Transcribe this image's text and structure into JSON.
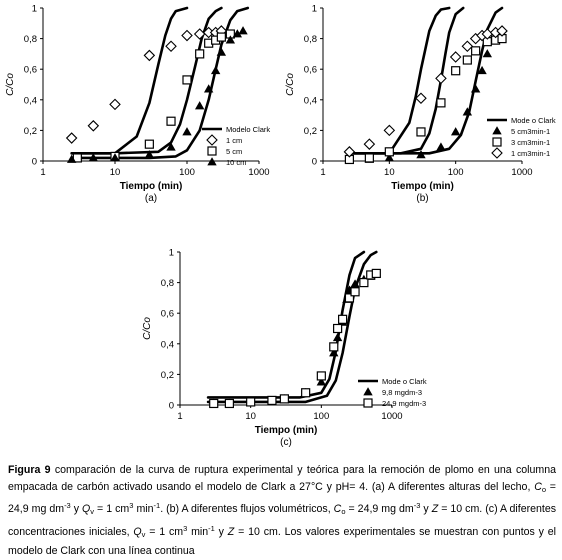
{
  "chart_data": [
    {
      "type": "scatter",
      "panel": "(a)",
      "xlabel": "Tiempo (min)",
      "ylabel": "C/Co",
      "x_scale": "log",
      "xlim": [
        1,
        1000
      ],
      "ylim": [
        0,
        1
      ],
      "x_ticks": [
        "1",
        "10",
        "100",
        "1000"
      ],
      "y_ticks": [
        "0",
        "0,2",
        "0,4",
        "0,6",
        "0,8",
        "1"
      ],
      "legend_position": "right",
      "series": [
        {
          "name": "1 cm",
          "marker": "diamond",
          "x": [
            2.5,
            5,
            10,
            30,
            60,
            100,
            150,
            200,
            250,
            300
          ],
          "y": [
            0.15,
            0.23,
            0.37,
            0.69,
            0.75,
            0.82,
            0.83,
            0.84,
            0.84,
            0.85
          ]
        },
        {
          "name": "5 cm",
          "marker": "square",
          "x": [
            3,
            10,
            30,
            60,
            100,
            150,
            200,
            250,
            300,
            400
          ],
          "y": [
            0.02,
            0.03,
            0.11,
            0.26,
            0.53,
            0.7,
            0.77,
            0.79,
            0.81,
            0.83
          ]
        },
        {
          "name": "10 cm",
          "marker": "triangle",
          "x": [
            2.5,
            5,
            10,
            30,
            60,
            100,
            150,
            200,
            250,
            300,
            400,
            500,
            600
          ],
          "y": [
            0.01,
            0.02,
            0.02,
            0.04,
            0.09,
            0.19,
            0.36,
            0.47,
            0.59,
            0.71,
            0.79,
            0.83,
            0.85
          ]
        }
      ],
      "model_curves": [
        {
          "name": "Modelo Clark",
          "x": [
            2.5,
            10,
            20,
            30,
            40,
            50,
            60,
            70,
            100
          ],
          "y": [
            0.05,
            0.05,
            0.16,
            0.38,
            0.63,
            0.82,
            0.93,
            0.98,
            1.0
          ]
        },
        {
          "name": "Modelo Clark",
          "x": [
            2.5,
            10,
            40,
            60,
            80,
            100,
            130,
            160,
            200,
            250,
            300
          ],
          "y": [
            0.05,
            0.05,
            0.06,
            0.12,
            0.24,
            0.4,
            0.62,
            0.8,
            0.93,
            0.98,
            1.0
          ]
        },
        {
          "name": "Modelo Clark",
          "x": [
            2.5,
            30,
            70,
            100,
            150,
            200,
            250,
            300,
            400,
            500,
            700
          ],
          "y": [
            0.02,
            0.02,
            0.03,
            0.07,
            0.2,
            0.4,
            0.6,
            0.76,
            0.92,
            0.98,
            1.0
          ]
        }
      ]
    },
    {
      "type": "scatter",
      "panel": "(b)",
      "xlabel": "Tiempo (min)",
      "ylabel": "C/Co",
      "x_scale": "log",
      "xlim": [
        1,
        1000
      ],
      "ylim": [
        0,
        1
      ],
      "x_ticks": [
        "1",
        "10",
        "100",
        "1000"
      ],
      "y_ticks": [
        "0",
        "0,2",
        "0,4",
        "0,6",
        "0,8",
        "1"
      ],
      "legend_position": "right",
      "series": [
        {
          "name": "1 cm3min-1",
          "marker": "triangle",
          "x": [
            5,
            10,
            30,
            60,
            100,
            150,
            200,
            250,
            300,
            350,
            400
          ],
          "y": [
            0.01,
            0.02,
            0.04,
            0.09,
            0.19,
            0.32,
            0.47,
            0.59,
            0.7,
            0.79,
            0.82
          ]
        },
        {
          "name": "3 cm3min-1",
          "marker": "square",
          "x": [
            2.5,
            5,
            10,
            30,
            60,
            100,
            150,
            200,
            300,
            400,
            500
          ],
          "y": [
            0.01,
            0.02,
            0.06,
            0.19,
            0.38,
            0.59,
            0.66,
            0.72,
            0.78,
            0.79,
            0.8
          ]
        },
        {
          "name": "5 cm3min-1",
          "marker": "diamond",
          "x": [
            2.5,
            5,
            10,
            30,
            60,
            100,
            150,
            200,
            250,
            300,
            400,
            500
          ],
          "y": [
            0.06,
            0.11,
            0.2,
            0.41,
            0.54,
            0.68,
            0.75,
            0.8,
            0.82,
            0.83,
            0.84,
            0.85
          ]
        }
      ],
      "model_curves": [
        {
          "name": "Modelo Clark",
          "x": [
            2.5,
            10,
            20,
            25,
            30,
            40,
            50,
            60,
            80
          ],
          "y": [
            0.05,
            0.05,
            0.25,
            0.42,
            0.6,
            0.85,
            0.95,
            0.99,
            1.0
          ]
        },
        {
          "name": "Modelo Clark",
          "x": [
            2.5,
            15,
            30,
            40,
            50,
            60,
            70,
            80,
            100,
            130
          ],
          "y": [
            0.05,
            0.05,
            0.08,
            0.18,
            0.34,
            0.53,
            0.7,
            0.84,
            0.96,
            1.0
          ]
        },
        {
          "name": "Modelo Clark",
          "x": [
            2.5,
            40,
            80,
            120,
            160,
            200,
            250,
            300,
            400,
            500
          ],
          "y": [
            0.05,
            0.05,
            0.08,
            0.17,
            0.32,
            0.52,
            0.72,
            0.86,
            0.97,
            1.0
          ]
        }
      ]
    },
    {
      "type": "scatter",
      "panel": "(c)",
      "xlabel": "Tiempo (min)",
      "ylabel": "C/Co",
      "x_scale": "log",
      "xlim": [
        1,
        1000
      ],
      "ylim": [
        0,
        1
      ],
      "x_ticks": [
        "1",
        "10",
        "100",
        "1000"
      ],
      "y_ticks": [
        "0",
        "0,2",
        "0,4",
        "0,6",
        "0,8",
        "1"
      ],
      "legend_position": "bottom-right",
      "series": [
        {
          "name": "9,8 mgdm-3",
          "marker": "triangle",
          "x": [
            3,
            5,
            10,
            30,
            60,
            100,
            150,
            170,
            200,
            230,
            250,
            300,
            400,
            500
          ],
          "y": [
            0.01,
            0.01,
            0.02,
            0.04,
            0.08,
            0.15,
            0.34,
            0.44,
            0.54,
            0.69,
            0.75,
            0.79,
            0.82,
            0.84
          ]
        },
        {
          "name": "24,9 mgdm-3",
          "marker": "square",
          "x": [
            3,
            5,
            10,
            20,
            30,
            60,
            100,
            150,
            170,
            200,
            250,
            300,
            400,
            500,
            600
          ],
          "y": [
            0.01,
            0.01,
            0.02,
            0.03,
            0.04,
            0.08,
            0.19,
            0.38,
            0.5,
            0.56,
            0.7,
            0.74,
            0.8,
            0.85,
            0.86
          ]
        }
      ],
      "model_curves": [
        {
          "name": "Modelo Clark",
          "x": [
            2.5,
            50,
            100,
            130,
            160,
            200,
            250,
            300,
            400
          ],
          "y": [
            0.05,
            0.05,
            0.08,
            0.17,
            0.35,
            0.62,
            0.85,
            0.96,
            1.0
          ]
        },
        {
          "name": "Modelo Clark",
          "x": [
            2.5,
            60,
            120,
            160,
            200,
            250,
            300,
            400,
            500,
            600
          ],
          "y": [
            0.02,
            0.02,
            0.06,
            0.16,
            0.34,
            0.58,
            0.76,
            0.92,
            0.98,
            1.0
          ]
        }
      ]
    }
  ],
  "legends": {
    "a": {
      "model": "Modelo Clark",
      "s1": "1 cm",
      "s2": "5 cm",
      "s3": "10 cm"
    },
    "b": {
      "model": "Mode o Clark",
      "s1": "1 cm3min-1",
      "s2": "3 cm3min-1",
      "s3": "5 cm3min-1"
    },
    "c": {
      "model": "Mode o Clark",
      "s1": "9,8 mgdm-3",
      "s2": "24,9 mgdm-3"
    }
  },
  "caption": {
    "figure_label": "Figura 9",
    "text_1": " comparación de la curva de ruptura experimental y teórica para la remoción de plomo en una columna empacada de carbón activado usando el modelo de Clark a 27°C y pH= 4. (a) A diferentes alturas del lecho, ",
    "co_1": "C",
    "co_1_sub": "o",
    "text_2": " = 24,9 mg dm",
    "sup_1": "-3",
    "text_3": " y ",
    "qv_1": "Q",
    "qv_1_sub": "v",
    "text_4": " = 1 cm",
    "sup_2": "3",
    "text_5": " min",
    "sup_3": "-1",
    "text_6": ". (b) A diferentes flujos volumétricos, ",
    "co_2": "C",
    "co_2_sub": "o",
    "text_7": " = 24,9 mg dm",
    "sup_4": "-3",
    "text_8": " y ",
    "z_1": "Z",
    "text_9": " = 10 cm. (c) A diferentes concentraciones iniciales, ",
    "qv_2": "Q",
    "qv_2_sub": "v",
    "text_10": " = 1 cm",
    "sup_5": "3",
    "text_11": " min",
    "sup_6": "-1",
    "text_12": " y ",
    "z_2": "Z",
    "text_13": " = 10 cm. Los valores experimentales se muestran con puntos y el modelo de Clark con una línea continua"
  }
}
